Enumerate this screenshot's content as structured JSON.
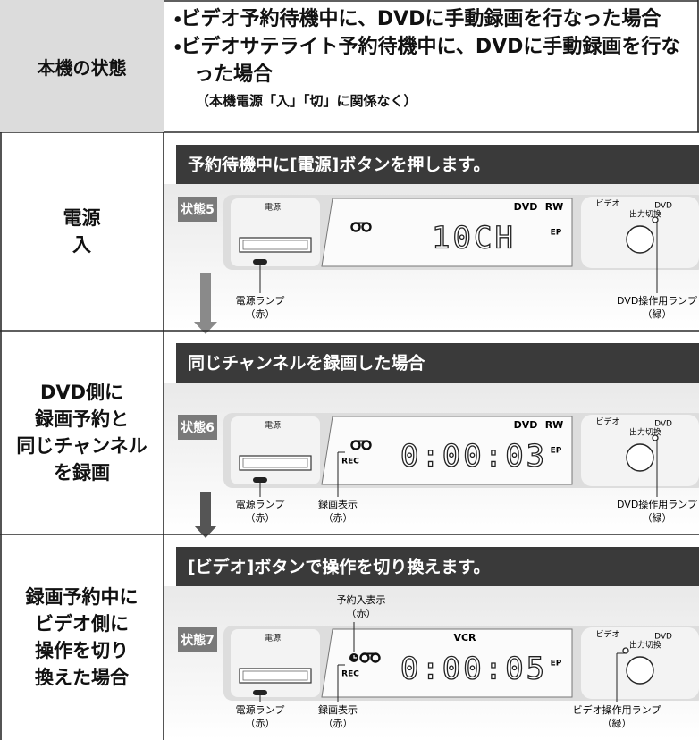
{
  "header": {
    "state_label": "本機の状態",
    "conditions": [
      "・ビデオ予約待機中に、DVDに手動録画を行なった場合",
      "・ビデオサテライト予約待機中に、DVDに手動録画を行なった場合"
    ],
    "note": "（本機電源「入」「切」に関係なく）"
  },
  "rows": [
    {
      "label": [
        "電源",
        "入"
      ],
      "banner": "予約待機中に[電源]ボタンを押します。",
      "state": "状態5",
      "power_label": "電源",
      "display": {
        "indicators": [
          "DVD",
          "RW"
        ],
        "mode": "EP",
        "digits": "10CH"
      },
      "output": {
        "video": "ビデオ",
        "dvd": "DVD",
        "switch": "出力切換"
      },
      "callouts": {
        "power_lamp": [
          "電源ランプ",
          "（赤）"
        ],
        "dvd_lamp": [
          "DVD操作用ランプ",
          "（緑）"
        ]
      }
    },
    {
      "label": [
        "DVD側に",
        "録画予約と",
        "同じチャンネル",
        "を録画"
      ],
      "banner": "同じチャンネルを録画した場合",
      "state": "状態6",
      "power_label": "電源",
      "display": {
        "indicators": [
          "DVD",
          "RW"
        ],
        "mode": "EP",
        "rec": "REC",
        "digits": "0:00:03"
      },
      "output": {
        "video": "ビデオ",
        "dvd": "DVD",
        "switch": "出力切換"
      },
      "callouts": {
        "power_lamp": [
          "電源ランプ",
          "（赤）"
        ],
        "rec_indicator": [
          "録画表示",
          "（赤）"
        ],
        "dvd_lamp": [
          "DVD操作用ランプ",
          "（緑）"
        ]
      }
    },
    {
      "label": [
        "録画予約中に",
        "ビデオ側に",
        "操作を切り",
        "換えた場合"
      ],
      "banner": "[ビデオ]ボタンで操作を切り換えます。",
      "state": "状態7",
      "power_label": "電源",
      "display": {
        "indicators": [
          "VCR"
        ],
        "mode": "EP",
        "rec": "REC",
        "digits": "0:00:05"
      },
      "output": {
        "video": "ビデオ",
        "dvd": "DVD",
        "switch": "出力切換"
      },
      "callouts": {
        "timer_indicator": [
          "予約入表示",
          "（赤）"
        ],
        "power_lamp": [
          "電源ランプ",
          "（赤）"
        ],
        "rec_indicator": [
          "録画表示",
          "（赤）"
        ],
        "video_lamp": [
          "ビデオ操作用ランプ",
          "（緑）"
        ]
      }
    }
  ]
}
